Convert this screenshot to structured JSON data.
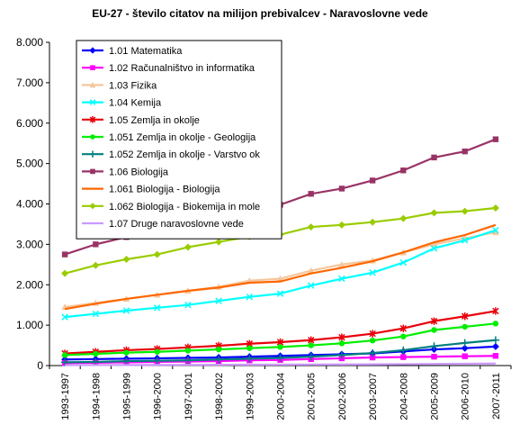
{
  "chart_data": {
    "type": "line",
    "title": "EU-27 - število citatov na milijon prebivalcev - Naravoslovne vede",
    "xlabel": "",
    "ylabel": "",
    "ylim": [
      0,
      8000
    ],
    "yticks": [
      0,
      1000,
      2000,
      3000,
      4000,
      5000,
      6000,
      7000,
      8000
    ],
    "ytick_labels": [
      "0",
      "1.000",
      "2.000",
      "3.000",
      "4.000",
      "5.000",
      "6.000",
      "7.000",
      "8.000"
    ],
    "grid": "none",
    "legend_position": "top-left",
    "categories": [
      "1993-1997",
      "1994-1998",
      "1995-1999",
      "1996-2000",
      "1997-2001",
      "1998-2002",
      "1999-2003",
      "2000-2004",
      "2001-2005",
      "2002-2006",
      "2003-2007",
      "2004-2008",
      "2005-2009",
      "2006-2010",
      "2007-2011"
    ],
    "series": [
      {
        "name": "1.01 Matematika",
        "color": "#0000ff",
        "marker": "diamond",
        "values": [
          150,
          160,
          170,
          180,
          190,
          200,
          220,
          240,
          260,
          280,
          300,
          350,
          400,
          430,
          470
        ]
      },
      {
        "name": "1.02 Računalništvo in informatika",
        "color": "#ff00ff",
        "marker": "square",
        "values": [
          60,
          70,
          80,
          90,
          100,
          110,
          130,
          140,
          160,
          180,
          200,
          210,
          220,
          230,
          240
        ]
      },
      {
        "name": "1.03 Fizika",
        "color": "#f5c79b",
        "marker": "triangle",
        "values": [
          1450,
          1550,
          1650,
          1750,
          1850,
          1950,
          2100,
          2150,
          2350,
          2500,
          2600,
          2800,
          3000,
          3150,
          3300
        ]
      },
      {
        "name": "1.04 Kemija",
        "color": "#00ffff",
        "marker": "x",
        "values": [
          1200,
          1280,
          1360,
          1430,
          1500,
          1600,
          1700,
          1780,
          1980,
          2150,
          2300,
          2550,
          2900,
          3100,
          3350
        ]
      },
      {
        "name": "1.05 Zemlja in okolje",
        "color": "#e8000b",
        "marker": "star",
        "values": [
          300,
          340,
          380,
          410,
          450,
          490,
          540,
          580,
          630,
          700,
          790,
          920,
          1100,
          1220,
          1350
        ]
      },
      {
        "name": "1.051 Zemlja in okolje - Geologija",
        "color": "#00ee00",
        "marker": "circle",
        "values": [
          260,
          290,
          320,
          340,
          370,
          400,
          430,
          460,
          500,
          550,
          620,
          720,
          880,
          960,
          1040
        ]
      },
      {
        "name": "1.052 Zemlja in okolje - Varstvo ok",
        "color": "#007f7f",
        "marker": "plus",
        "values": [
          80,
          90,
          110,
          120,
          130,
          150,
          170,
          190,
          220,
          260,
          310,
          380,
          480,
          560,
          630
        ]
      },
      {
        "name": "1.06 Biologija",
        "color": "#993366",
        "marker": "square",
        "values": [
          2750,
          3000,
          3180,
          3320,
          3550,
          3700,
          3850,
          3980,
          4250,
          4380,
          4580,
          4830,
          5150,
          5300,
          5600
        ]
      },
      {
        "name": "1.061 Biologija - Biologija",
        "color": "#ff6600",
        "marker": "line",
        "values": [
          1400,
          1530,
          1650,
          1750,
          1850,
          1930,
          2050,
          2080,
          2280,
          2420,
          2580,
          2800,
          3050,
          3230,
          3480
        ]
      },
      {
        "name": "1.062 Biologija - Biokemija in mole",
        "color": "#99cc00",
        "marker": "diamond",
        "values": [
          2280,
          2480,
          2630,
          2750,
          2930,
          3060,
          3190,
          3240,
          3430,
          3480,
          3550,
          3640,
          3780,
          3820,
          3900
        ]
      },
      {
        "name": "1.07 Druge naravoslovne vede",
        "color": "#cc99ff",
        "marker": "line",
        "values": [
          10,
          12,
          14,
          16,
          18,
          20,
          22,
          24,
          26,
          28,
          30,
          35,
          40,
          45,
          50
        ]
      }
    ]
  }
}
